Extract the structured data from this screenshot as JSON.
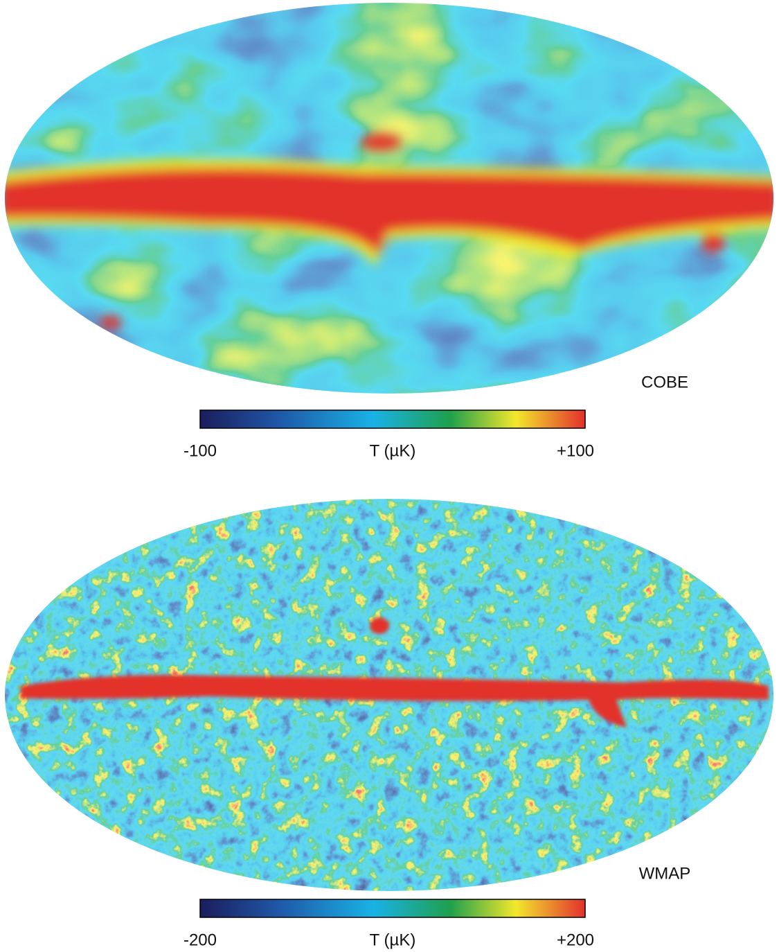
{
  "panels": [
    {
      "label": "COBE",
      "colorbar": {
        "lim": [
          -100,
          100
        ],
        "ticks": [
          -100,
          {
            "value": 100,
            "label": "+100"
          }
        ],
        "title": "T (µK)"
      }
    },
    {
      "label": "WMAP",
      "colorbar": {
        "lim": [
          -200,
          200
        ],
        "ticks": [
          -200,
          {
            "value": 200,
            "label": "+200"
          }
        ],
        "title": "T (µK)"
      }
    }
  ]
}
